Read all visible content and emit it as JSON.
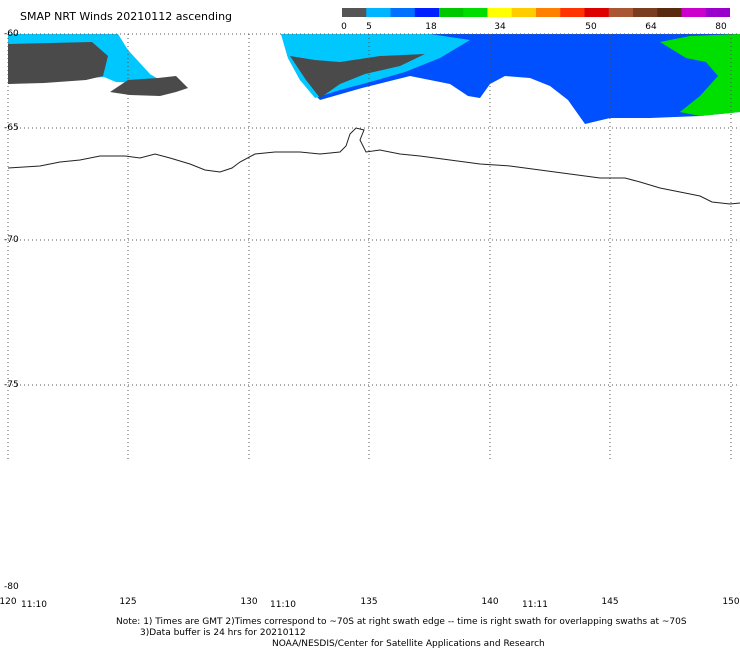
{
  "title": "SMAP NRT Winds 20210112 ascending",
  "colorbar": {
    "ticks": [
      "0",
      "5",
      "18",
      "34",
      "50",
      "64",
      "80"
    ],
    "segments": [
      "#555555",
      "#00b4ff",
      "#0070ff",
      "#0020ff",
      "#00c800",
      "#00dd00",
      "#ffff00",
      "#ffcc00",
      "#ff7f00",
      "#ff3300",
      "#dd0000",
      "#aa5533",
      "#7b3d1f",
      "#5a2a10",
      "#cc00cc",
      "#9900cc"
    ]
  },
  "latitudes": [
    "-60",
    "-65",
    "-70",
    "-75",
    "-80"
  ],
  "longitudes": [
    "120",
    "125",
    "130",
    "135",
    "140",
    "145",
    "150"
  ],
  "times": [
    "11:10",
    "11:10",
    "11:11"
  ],
  "notes": {
    "line1": "Note:  1) Times are GMT 2)Times correspond to ~70S at right swath edge -- time is right swath for overlapping swaths at ~70S",
    "line2": "3)Data buffer is 24 hrs for 20210112",
    "line3": "NOAA/NESDIS/Center for Satellite Applications and Research"
  },
  "colors": {
    "land": "#4a4a4a",
    "low_wind": "#00c8ff",
    "mid_wind": "#0050ff",
    "high_wind": "#00e000",
    "coast": "#000000"
  }
}
